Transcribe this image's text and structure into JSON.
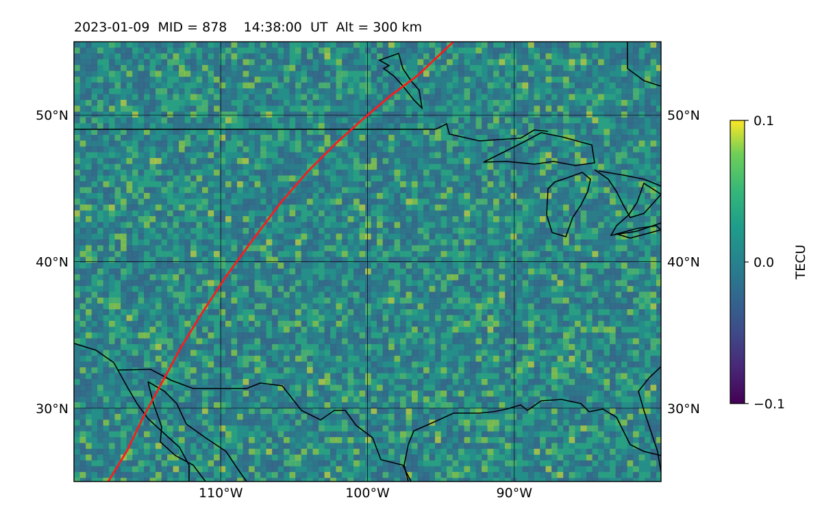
{
  "title": "2023-01-09  MID = 878    14:38:00  UT  Alt = 300 km",
  "map": {
    "lon_range": [
      -120,
      -80
    ],
    "lat_range": [
      25,
      55
    ],
    "lat_ticks": [
      {
        "value": 30,
        "label": "30°N"
      },
      {
        "value": 40,
        "label": "40°N"
      },
      {
        "value": 50,
        "label": "50°N"
      }
    ],
    "lon_ticks": [
      {
        "value": -110,
        "label": "110°W"
      },
      {
        "value": -100,
        "label": "100°W"
      },
      {
        "value": -90,
        "label": "90°W"
      }
    ],
    "field_colormap": "viridis",
    "field_note_base_color": "#2a8a86",
    "track_color": "#ff1a1a",
    "coastline_color": "#000000"
  },
  "colorbar": {
    "label": "TECU",
    "min": -0.1,
    "max": 0.1,
    "ticks": [
      {
        "value": 0.1,
        "label": "0.1"
      },
      {
        "value": 0.0,
        "label": "0.0"
      },
      {
        "value": -0.1,
        "label": "−0.1"
      }
    ]
  }
}
